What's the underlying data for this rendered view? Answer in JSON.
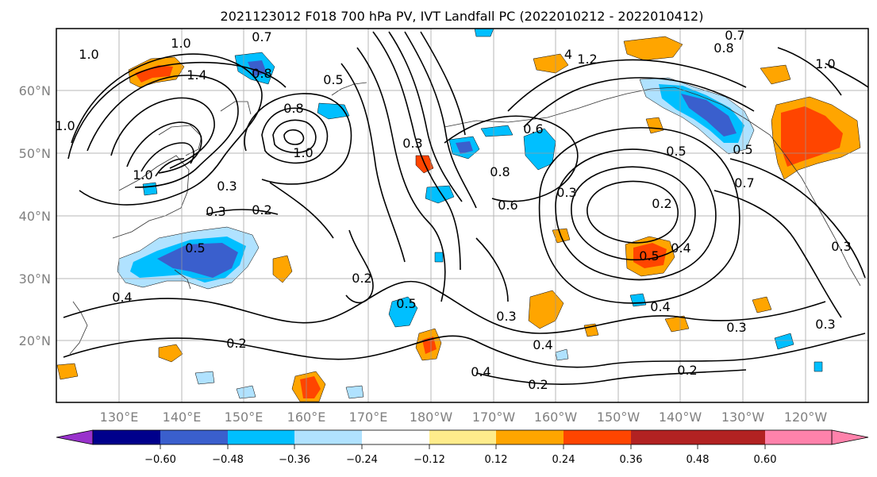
{
  "title": "2021123012 F018 700 hPa PV, IVT Landfall PC (2022010212 - 2022010412)",
  "map": {
    "lat_labels": [
      "60°N",
      "50°N",
      "40°N",
      "30°N",
      "20°N"
    ],
    "lon_labels": [
      "130°E",
      "140°E",
      "150°E",
      "160°E",
      "170°E",
      "180°W",
      "170°W",
      "160°W",
      "150°W",
      "140°W",
      "130°W",
      "120°W"
    ],
    "contour_labels": [
      "1.0",
      "0.7",
      "1.0",
      "0.8",
      "0.5",
      "1.4",
      "1.0",
      "0.8",
      "1.0",
      "0.3",
      "0.2",
      "0.3",
      "1.0",
      "0.5",
      "0.3",
      "0.8",
      "0.6",
      "0.3",
      "0.2",
      "0.4",
      "0.5",
      "0.4",
      "0.2",
      "0.3",
      "0.4",
      "0.3",
      "0.2",
      "0.2",
      "0.4",
      "0.2",
      "0.3",
      "0.4",
      "0.5",
      "0.5",
      "0.7",
      "0.8",
      "0.7",
      "1.2",
      "4",
      "1.0",
      "0.5",
      "0.3",
      "0.6"
    ]
  },
  "colorbar": {
    "tick_labels": [
      "−0.60",
      "−0.48",
      "−0.36",
      "−0.24",
      "−0.12",
      "0.12",
      "0.24",
      "0.36",
      "0.48",
      "0.60"
    ],
    "colors": [
      "#9932cc",
      "#00008b",
      "#3a5fcd",
      "#00bfff",
      "#b0e2ff",
      "#ffffff",
      "#ffec8b",
      "#ffa500",
      "#ff4500",
      "#b22222",
      "#ff82ab"
    ]
  }
}
